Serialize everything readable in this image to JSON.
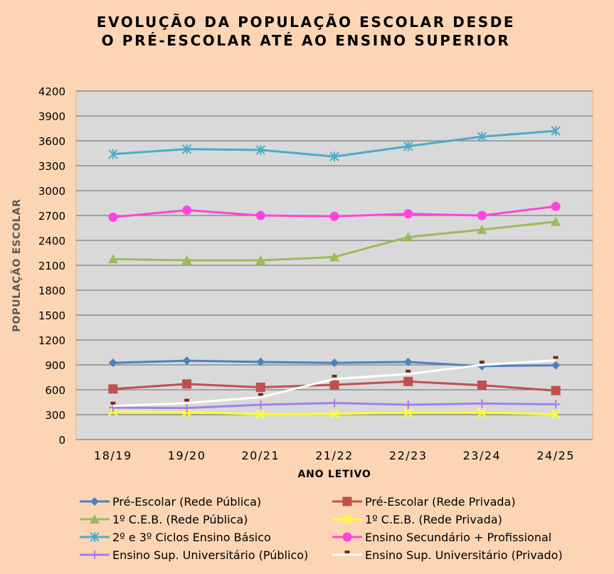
{
  "chart_data": {
    "type": "line",
    "title_lines": [
      "EVOLUÇÃO DA POPULAÇÃO ESCOLAR DESDE",
      "O PRÉ-ESCOLAR ATÉ AO ENSINO SUPERIOR"
    ],
    "xlabel": "ANO LETIVO",
    "ylabel": "POPULAÇÃO ESCOLAR",
    "categories": [
      "18/19",
      "19/20",
      "20/21",
      "21/22",
      "22/23",
      "23/24",
      "24/25"
    ],
    "ylim": [
      0,
      4200
    ],
    "yticks": [
      "0",
      "300",
      "600",
      "900",
      "1200",
      "1500",
      "1800",
      "2100",
      "2400",
      "2700",
      "3000",
      "3300",
      "3600",
      "3900",
      "4200"
    ],
    "grid": true,
    "legend_position": "bottom",
    "series": [
      {
        "name": "Pré-Escolar (Rede Pública)",
        "color": "#4F81BD",
        "marker": "diamond",
        "values": [
          925,
          950,
          935,
          925,
          935,
          885,
          895
        ]
      },
      {
        "name": "Pré-Escolar (Rede Privada)",
        "color": "#C0504D",
        "marker": "square",
        "values": [
          610,
          670,
          630,
          660,
          700,
          655,
          590
        ]
      },
      {
        "name": "1º C.E.B. (Rede Pública)",
        "color": "#9BBB59",
        "marker": "triangle",
        "values": [
          2175,
          2160,
          2160,
          2200,
          2440,
          2530,
          2625
        ]
      },
      {
        "name": "1º C.E.B.  (Rede Privada)",
        "color": "#FFFF33",
        "marker": "x",
        "values": [
          340,
          330,
          305,
          310,
          325,
          325,
          305
        ]
      },
      {
        "name": "2º e 3º Ciclos Ensino Básico",
        "color": "#4BACC6",
        "marker": "star",
        "values": [
          3440,
          3500,
          3490,
          3410,
          3535,
          3650,
          3720
        ]
      },
      {
        "name": "Ensino Secundário + Profissional",
        "color": "#FF44DD",
        "marker": "circle",
        "values": [
          2680,
          2765,
          2700,
          2690,
          2720,
          2700,
          2810
        ]
      },
      {
        "name": "Ensino Sup. Universitário  (Público)",
        "color": "#A47FE8",
        "marker": "plus",
        "values": [
          385,
          380,
          420,
          440,
          420,
          435,
          425
        ]
      },
      {
        "name": "Ensino Sup. Universitário  (Privado)",
        "color": "#FFFFFF",
        "marker": "dash",
        "values": [
          405,
          440,
          510,
          730,
          790,
          900,
          955
        ]
      }
    ]
  }
}
